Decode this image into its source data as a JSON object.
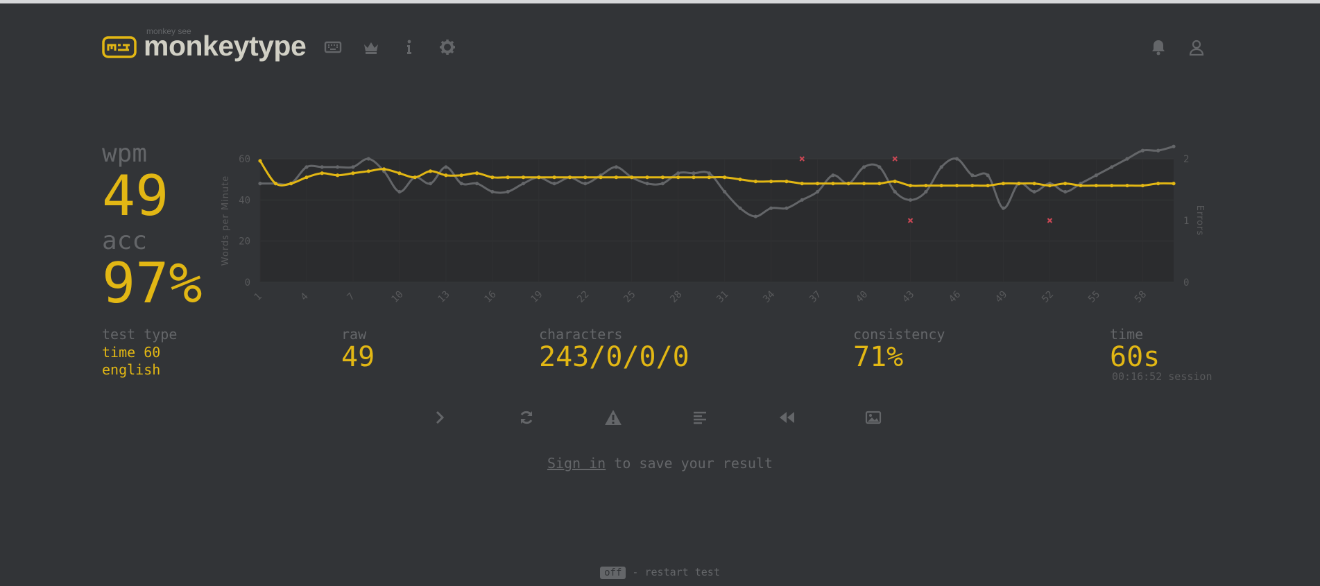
{
  "header": {
    "logo_subtitle": "monkey see",
    "logo_title": "monkeytype",
    "icons": [
      "keyboard-icon",
      "crown-icon",
      "info-icon",
      "gear-icon",
      "bell-icon",
      "user-icon"
    ]
  },
  "stats": {
    "wpm_label": "wpm",
    "wpm_value": "49",
    "acc_label": "acc",
    "acc_value": "97%",
    "test_type_label": "test type",
    "test_type_line1": "time 60",
    "test_type_line2": "english",
    "raw_label": "raw",
    "raw_value": "49",
    "characters_label": "characters",
    "characters_value": "243/0/0/0",
    "consistency_label": "consistency",
    "consistency_value": "71%",
    "time_label": "time",
    "time_value": "60s",
    "session_text": "00:16:52 session"
  },
  "actions": [
    "next-test",
    "restart-test",
    "report-issue",
    "word-history",
    "replay",
    "screenshot"
  ],
  "signin": {
    "link": "Sign in",
    "rest": " to save your result"
  },
  "footer": {
    "key": "off",
    "text": " - restart test"
  },
  "colors": {
    "bg": "#323437",
    "main": "#e2b714",
    "sub": "#646669",
    "text": "#d1d0c5",
    "error": "#ca4754"
  },
  "chart_data": {
    "type": "line",
    "ylabel": "Words per Minute",
    "y2label": "Errors",
    "ylim": [
      0,
      60
    ],
    "y2lim": [
      0,
      2
    ],
    "y_ticks": [
      "0",
      "20",
      "40",
      "60"
    ],
    "y2_ticks": [
      "0",
      "1",
      "2"
    ],
    "x_ticks": [
      "1",
      "4",
      "7",
      "10",
      "13",
      "16",
      "19",
      "22",
      "25",
      "28",
      "31",
      "34",
      "37",
      "40",
      "43",
      "46",
      "49",
      "52",
      "55",
      "58"
    ],
    "series": [
      {
        "name": "wpm",
        "color": "#e2b714",
        "x": [
          1,
          2,
          3,
          4,
          5,
          6,
          7,
          8,
          9,
          10,
          11,
          12,
          13,
          14,
          15,
          16,
          17,
          18,
          19,
          20,
          21,
          22,
          23,
          24,
          25,
          26,
          27,
          28,
          29,
          30,
          31,
          32,
          33,
          34,
          35,
          36,
          37,
          38,
          39,
          40,
          41,
          42,
          43,
          44,
          45,
          46,
          47,
          48,
          49,
          50,
          51,
          52,
          53,
          54,
          55,
          56,
          57,
          58,
          59,
          60
        ],
        "values": [
          59,
          48,
          48,
          51,
          53,
          52,
          53,
          54,
          55,
          53,
          51,
          54,
          52,
          52,
          53,
          51,
          51,
          51,
          51,
          51,
          51,
          51,
          51,
          51,
          51,
          51,
          51,
          51,
          51,
          51,
          51,
          50,
          49,
          49,
          49,
          48,
          48,
          48,
          48,
          48,
          48,
          49,
          47,
          47,
          47,
          47,
          47,
          47,
          48,
          48,
          48,
          47,
          48,
          47,
          47,
          47,
          47,
          47,
          48,
          48
        ]
      },
      {
        "name": "raw",
        "color": "#646669",
        "x": [
          1,
          2,
          3,
          4,
          5,
          6,
          7,
          8,
          9,
          10,
          11,
          12,
          13,
          14,
          15,
          16,
          17,
          18,
          19,
          20,
          21,
          22,
          23,
          24,
          25,
          26,
          27,
          28,
          29,
          30,
          31,
          32,
          33,
          34,
          35,
          36,
          37,
          38,
          39,
          40,
          41,
          42,
          43,
          44,
          45,
          46,
          47,
          48,
          49,
          50,
          51,
          52,
          53,
          54,
          55,
          56,
          57,
          58,
          59,
          60
        ],
        "values": [
          48,
          48,
          48,
          56,
          56,
          56,
          56,
          60,
          54,
          44,
          51,
          48,
          56,
          48,
          48,
          44,
          44,
          48,
          51,
          48,
          51,
          48,
          52,
          56,
          51,
          48,
          48,
          53,
          53,
          53,
          44,
          36,
          32,
          36,
          36,
          40,
          44,
          52,
          48,
          56,
          56,
          44,
          40,
          44,
          56,
          60,
          52,
          52,
          36,
          48,
          44,
          48,
          44,
          48,
          52,
          56,
          60,
          64,
          64,
          66
        ]
      },
      {
        "name": "errors",
        "color": "#ca4754",
        "x": [
          36,
          42,
          43,
          52
        ],
        "values": [
          2,
          2,
          1,
          1
        ]
      }
    ]
  }
}
